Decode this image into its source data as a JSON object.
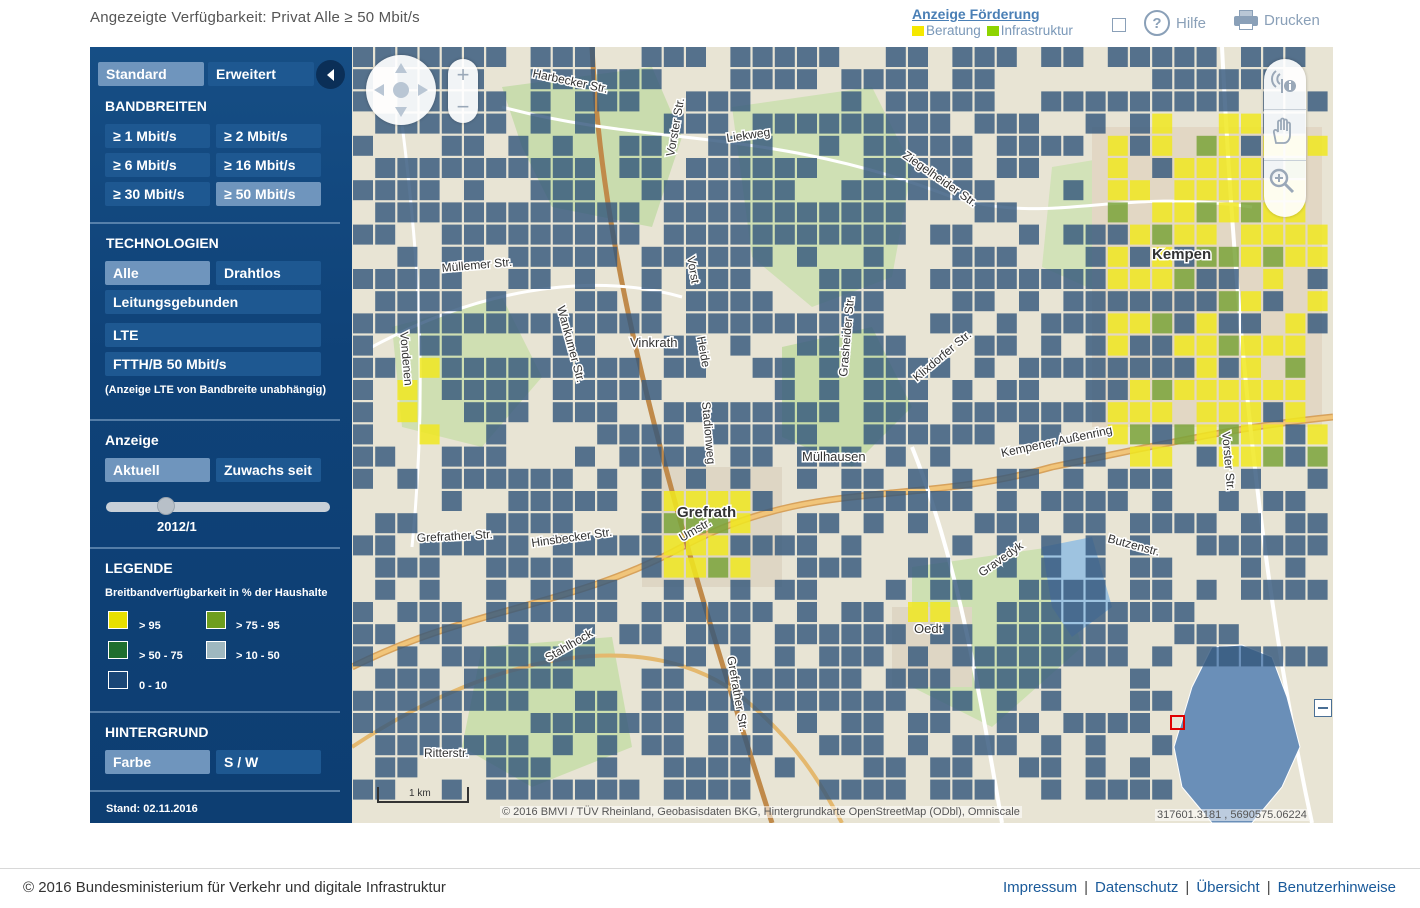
{
  "header": {
    "title": "Angezeigte Verfügbarkeit: Privat Alle ≥ 50 Mbit/s",
    "foerderung": {
      "title": "Anzeige Förderung",
      "beratung": "Beratung",
      "infrastruktur": "Infrastruktur",
      "beratung_color": "#f5e800",
      "infrastruktur_color": "#8ed400"
    },
    "help_label": "Hilfe",
    "help_glyph": "?",
    "print_label": "Drucken"
  },
  "sidebar": {
    "mode_tabs": [
      "Standard",
      "Erweitert"
    ],
    "bandwidth_heading": "BANDBREITEN",
    "bandwidths": [
      "≥ 1 Mbit/s",
      "≥ 2 Mbit/s",
      "≥ 6 Mbit/s",
      "≥ 16 Mbit/s",
      "≥ 30 Mbit/s",
      "≥ 50 Mbit/s"
    ],
    "technology_heading": "TECHNOLOGIEN",
    "technologies": [
      "Alle",
      "Drahtlos",
      "Leitungsgebunden",
      "LTE",
      "FTTH/B 50 Mbit/s"
    ],
    "lte_note": "(Anzeige LTE von Bandbreite unabhängig)",
    "display_heading": "Anzeige",
    "display_options": [
      "Aktuell",
      "Zuwachs seit"
    ],
    "slider_value": "2012/1",
    "legend_heading": "LEGENDE",
    "legend_subtitle": "Breitbandverfügbarkeit in % der Haushalte",
    "legend": [
      {
        "label": "> 95",
        "color": "#e8e000"
      },
      {
        "label": "> 75 - 95",
        "color": "#6e9e1e"
      },
      {
        "label": "> 50 - 75",
        "color": "#1f6e2e"
      },
      {
        "label": "> 10 - 50",
        "color": "#9fb8c0"
      },
      {
        "label": "0 - 10",
        "color": "#1a4676"
      }
    ],
    "background_heading": "HINTERGRUND",
    "background_options": [
      "Farbe",
      "S / W"
    ],
    "stand": "Stand: 02.11.2016"
  },
  "map": {
    "places": {
      "kempen": "Kempen",
      "grefrath": "Grefrath",
      "vinkrath": "Vinkrath",
      "muelhausen": "Mülhausen",
      "oedt": "Oedt"
    },
    "streets": {
      "harbecker": "Harbecker Str.",
      "liekweg": "Liekweg",
      "ziegelheider": "Ziegelheider Str.",
      "muellemer": "Müllemer Str.",
      "wankumer": "Wankumer Str.",
      "vorster_top": "Vorster Str.",
      "vorst": "Vorst",
      "grasheider": "Grasheider Str.",
      "klixdorfer": "Klixdorfer Str.",
      "kempener_aussenring": "Kempener Außenring",
      "vorster_right": "Vorster Str.",
      "grefrather": "Grefrather Str.",
      "hinsbecker": "Hinsbecker Str.",
      "butzen": "Butzenstr.",
      "stadionweg": "Stadionweg",
      "ritterstr": "Ritterstr.",
      "umstr": "Umstr.",
      "heide": "Heide",
      "gravedyk": "Gravedyk",
      "stahlhock": "Stahlhock",
      "vonderen": "Vondenen",
      "gellepp": "Grefrather Str."
    },
    "scale_label": "1 km",
    "attribution": "© 2016 BMVI / TÜV Rheinland, Geobasisdaten BKG, Hintergrundkarte OpenStreetMap (ODbl), Omniscale",
    "coordinates": "317601.3181 , 5690575.06224",
    "colors": {
      "cell": "#34587d",
      "yellow": "#f0e820",
      "green": "#7aa33a",
      "land": "#e8e4d4",
      "forest": "#c9dcae",
      "road_major": "#d7a25c",
      "germany": "#6a8fb8"
    }
  },
  "footer": {
    "copyright": "© 2016 Bundesministerium für Verkehr und digitale Infrastruktur",
    "links": [
      "Impressum",
      "Datenschutz",
      "Übersicht",
      "Benutzerhinweise"
    ]
  }
}
